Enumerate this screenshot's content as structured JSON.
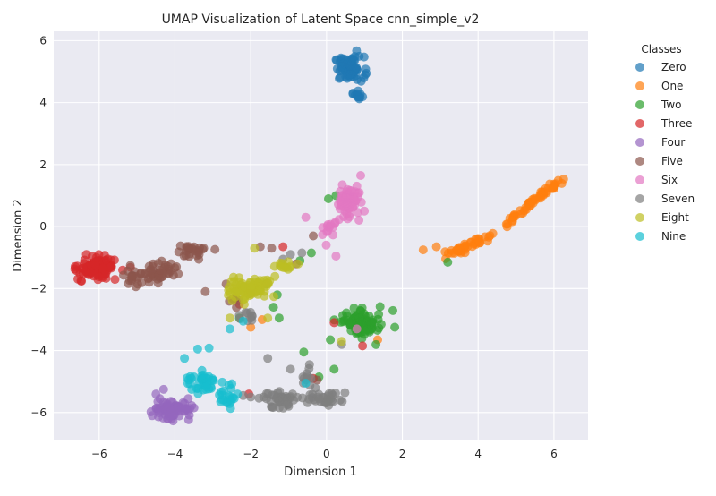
{
  "chart_data": {
    "type": "scatter",
    "title": "UMAP Visualization of Latent Space cnn_simple_v2",
    "xlabel": "Dimension 1",
    "ylabel": "Dimension 2",
    "xlim": [
      -7.2,
      6.9
    ],
    "ylim": [
      -6.9,
      6.3
    ],
    "xticks": [
      -6,
      -4,
      -2,
      0,
      2,
      4,
      6
    ],
    "yticks": [
      -6,
      -4,
      -2,
      0,
      2,
      4,
      6
    ],
    "grid": true,
    "legend": {
      "title": "Classes",
      "position": "outside-right"
    },
    "series": [
      {
        "name": "Zero",
        "color": "#1f77b4",
        "clusters": [
          {
            "cx": 0.6,
            "cy": 5.1,
            "rx": 0.35,
            "ry": 0.35,
            "n": 75
          },
          {
            "cx": 0.85,
            "cy": 4.2,
            "rx": 0.15,
            "ry": 0.15,
            "n": 12
          }
        ],
        "points": []
      },
      {
        "name": "One",
        "color": "#ff7f0e",
        "clusters": [],
        "segments": [
          {
            "x1": 3.2,
            "y1": -0.95,
            "x2": 4.4,
            "y2": -0.2,
            "n": 40,
            "jitter": 0.07
          },
          {
            "x1": 4.7,
            "y1": 0.05,
            "x2": 6.2,
            "y2": 1.55,
            "n": 55,
            "jitter": 0.05
          }
        ],
        "points": [
          [
            2.55,
            -0.75
          ],
          [
            2.9,
            -0.65
          ],
          [
            1.35,
            -3.65
          ],
          [
            -1.7,
            -3.0
          ],
          [
            -2.0,
            -3.25
          ]
        ]
      },
      {
        "name": "Two",
        "color": "#2ca02c",
        "clusters": [
          {
            "cx": 0.9,
            "cy": -3.1,
            "rx": 0.55,
            "ry": 0.35,
            "n": 90
          }
        ],
        "points": [
          [
            -1.3,
            -2.2
          ],
          [
            -1.4,
            -2.6
          ],
          [
            -1.25,
            -2.95
          ],
          [
            -1.6,
            -1.85
          ],
          [
            -0.7,
            -1.1
          ],
          [
            -0.4,
            -0.85
          ],
          [
            -0.6,
            -4.05
          ],
          [
            0.05,
            0.9
          ],
          [
            0.25,
            1.0
          ],
          [
            3.2,
            -1.15
          ],
          [
            0.1,
            -3.65
          ],
          [
            0.2,
            -4.6
          ],
          [
            -0.2,
            -4.85
          ],
          [
            0.05,
            -5.6
          ],
          [
            -2.3,
            -2.95
          ]
        ]
      },
      {
        "name": "Three",
        "color": "#d62728",
        "clusters": [
          {
            "cx": -6.0,
            "cy": -1.3,
            "rx": 0.45,
            "ry": 0.35,
            "n": 100
          }
        ],
        "points": [
          [
            0.2,
            -3.1
          ],
          [
            0.95,
            -3.85
          ],
          [
            -0.35,
            -4.9
          ],
          [
            -2.3,
            -2.5
          ],
          [
            -2.0,
            -2.15
          ],
          [
            -2.05,
            -5.4
          ],
          [
            -1.15,
            -0.65
          ]
        ]
      },
      {
        "name": "Four",
        "color": "#9467bd",
        "clusters": [
          {
            "cx": -4.1,
            "cy": -5.9,
            "rx": 0.45,
            "ry": 0.25,
            "n": 65
          }
        ],
        "points": [
          [
            -4.5,
            -5.4
          ],
          [
            -4.4,
            -5.55
          ],
          [
            -3.75,
            -5.7
          ],
          [
            -3.5,
            -5.85
          ],
          [
            -3.65,
            -5.55
          ],
          [
            -4.6,
            -6.1
          ],
          [
            -4.3,
            -5.25
          ]
        ]
      },
      {
        "name": "Five",
        "color": "#8c564b",
        "clusters": [
          {
            "cx": -3.6,
            "cy": -0.8,
            "rx": 0.35,
            "ry": 0.2,
            "n": 25
          },
          {
            "cx": -4.4,
            "cy": -1.45,
            "rx": 0.45,
            "ry": 0.3,
            "n": 40
          },
          {
            "cx": -5.0,
            "cy": -1.7,
            "rx": 0.35,
            "ry": 0.25,
            "n": 20
          },
          {
            "cx": -2.4,
            "cy": -2.4,
            "rx": 0.2,
            "ry": 0.2,
            "n": 5
          }
        ],
        "points": [
          [
            -1.75,
            -0.65
          ],
          [
            -1.45,
            -0.7
          ],
          [
            -0.35,
            -0.3
          ],
          [
            -2.65,
            -1.85
          ],
          [
            -3.2,
            -2.1
          ],
          [
            -0.8,
            -1.2
          ],
          [
            -0.25,
            -4.95
          ]
        ]
      },
      {
        "name": "Six",
        "color": "#e377c2",
        "clusters": [
          {
            "cx": 0.55,
            "cy": 0.75,
            "rx": 0.3,
            "ry": 0.45,
            "n": 70
          },
          {
            "cx": 0.05,
            "cy": -0.1,
            "rx": 0.2,
            "ry": 0.3,
            "n": 15
          }
        ],
        "points": [
          [
            -0.55,
            0.3
          ],
          [
            0.25,
            -0.95
          ],
          [
            0.8,
            -3.3
          ],
          [
            0.9,
            1.65
          ]
        ]
      },
      {
        "name": "Seven",
        "color": "#7f7f7f",
        "clusters": [
          {
            "cx": -1.2,
            "cy": -5.55,
            "rx": 0.6,
            "ry": 0.25,
            "n": 45
          },
          {
            "cx": 0.0,
            "cy": -5.55,
            "rx": 0.4,
            "ry": 0.2,
            "n": 30
          },
          {
            "cx": -0.5,
            "cy": -4.85,
            "rx": 0.3,
            "ry": 0.25,
            "n": 10
          },
          {
            "cx": -2.1,
            "cy": -2.85,
            "rx": 0.45,
            "ry": 0.2,
            "n": 10
          }
        ],
        "points": [
          [
            -0.95,
            -0.9
          ],
          [
            -0.65,
            -0.85
          ],
          [
            -1.15,
            -1.05
          ],
          [
            0.4,
            -3.8
          ],
          [
            -1.55,
            -4.25
          ],
          [
            -0.95,
            -4.6
          ],
          [
            -0.45,
            -4.45
          ],
          [
            -2.0,
            -5.5
          ],
          [
            -2.2,
            -5.45
          ]
        ]
      },
      {
        "name": "Eight",
        "color": "#bcbd22",
        "clusters": [
          {
            "cx": -2.05,
            "cy": -2.0,
            "rx": 0.5,
            "ry": 0.35,
            "n": 75
          },
          {
            "cx": -1.15,
            "cy": -1.3,
            "rx": 0.25,
            "ry": 0.12,
            "n": 12
          }
        ],
        "points": [
          [
            -1.9,
            -0.7
          ],
          [
            -0.75,
            -1.2
          ],
          [
            -1.55,
            -2.95
          ],
          [
            -2.55,
            -2.95
          ],
          [
            0.4,
            -3.7
          ],
          [
            -2.2,
            -2.35
          ],
          [
            -1.5,
            -1.75
          ]
        ]
      },
      {
        "name": "Nine",
        "color": "#17becf",
        "clusters": [
          {
            "cx": -3.2,
            "cy": -5.0,
            "rx": 0.45,
            "ry": 0.3,
            "n": 40
          },
          {
            "cx": -2.6,
            "cy": -5.5,
            "rx": 0.18,
            "ry": 0.25,
            "n": 18
          }
        ],
        "points": [
          [
            -3.4,
            -3.95
          ],
          [
            -3.1,
            -3.92
          ],
          [
            -3.75,
            -4.25
          ],
          [
            -2.55,
            -3.3
          ],
          [
            -2.2,
            -3.05
          ],
          [
            -0.55,
            -5.05
          ],
          [
            -3.5,
            -4.85
          ]
        ]
      }
    ]
  }
}
